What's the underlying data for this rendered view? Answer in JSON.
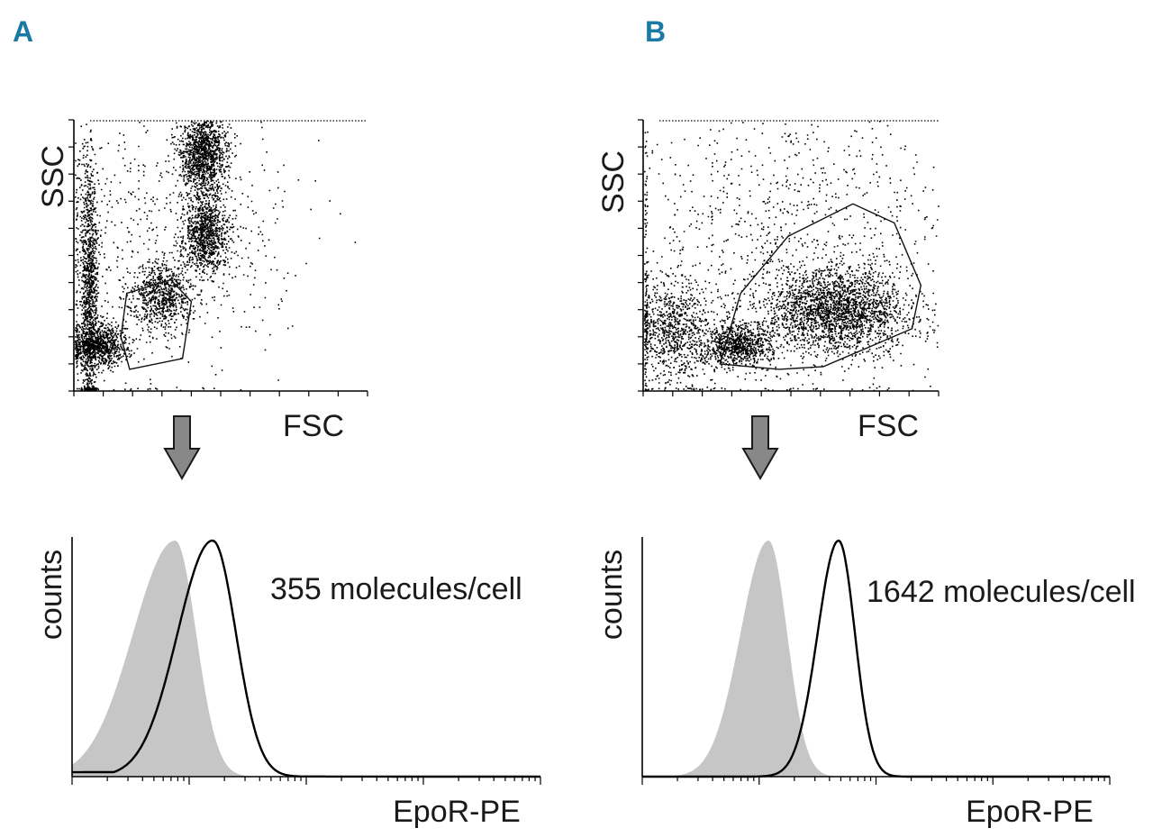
{
  "panels": [
    {
      "letter": "A",
      "scatter": {
        "xlabel": "FSC",
        "ylabel": "SSC"
      },
      "histogram": {
        "xlabel": "EpoR-PE",
        "ylabel": "counts",
        "annotation": "355 molecules/cell"
      }
    },
    {
      "letter": "B",
      "scatter": {
        "xlabel": "FSC",
        "ylabel": "SSC"
      },
      "histogram": {
        "xlabel": "EpoR-PE",
        "ylabel": "counts",
        "annotation": "1642 molecules/cell"
      }
    }
  ],
  "chart_data": [
    {
      "type": "scatter",
      "panel": "A",
      "xlabel": "FSC",
      "ylabel": "SSC",
      "xlim": [
        0,
        1
      ],
      "ylim": [
        0,
        1
      ],
      "clusters": [
        {
          "cx": 0.08,
          "cy": 0.17,
          "sx": 0.05,
          "sy": 0.04,
          "n": 900
        },
        {
          "cx": 0.44,
          "cy": 0.87,
          "sx": 0.04,
          "sy": 0.08,
          "n": 1300
        },
        {
          "cx": 0.45,
          "cy": 0.58,
          "sx": 0.04,
          "sy": 0.07,
          "n": 900
        },
        {
          "cx": 0.3,
          "cy": 0.35,
          "sx": 0.05,
          "sy": 0.06,
          "n": 700
        },
        {
          "cx": 0.05,
          "cy": 0.4,
          "sx": 0.015,
          "sy": 0.25,
          "n": 1100
        },
        {
          "cx": 0.32,
          "cy": 0.55,
          "sx": 0.22,
          "sy": 0.25,
          "n": 700
        }
      ],
      "gate": [
        [
          0.18,
          0.36
        ],
        [
          0.33,
          0.41
        ],
        [
          0.4,
          0.33
        ],
        [
          0.37,
          0.12
        ],
        [
          0.19,
          0.08
        ],
        [
          0.16,
          0.2
        ]
      ]
    },
    {
      "type": "scatter",
      "panel": "B",
      "xlabel": "FSC",
      "ylabel": "SSC",
      "xlim": [
        0,
        1
      ],
      "ylim": [
        0,
        1
      ],
      "clusters": [
        {
          "cx": 0.66,
          "cy": 0.3,
          "sx": 0.12,
          "sy": 0.08,
          "n": 2200
        },
        {
          "cx": 0.32,
          "cy": 0.17,
          "sx": 0.06,
          "sy": 0.04,
          "n": 800
        },
        {
          "cx": 0.1,
          "cy": 0.22,
          "sx": 0.07,
          "sy": 0.1,
          "n": 900
        },
        {
          "cx": 0.5,
          "cy": 0.55,
          "sx": 0.3,
          "sy": 0.28,
          "n": 1100
        }
      ],
      "gate": [
        [
          0.26,
          0.1
        ],
        [
          0.46,
          0.08
        ],
        [
          0.61,
          0.09
        ],
        [
          0.91,
          0.23
        ],
        [
          0.94,
          0.39
        ],
        [
          0.85,
          0.62
        ],
        [
          0.71,
          0.69
        ],
        [
          0.49,
          0.57
        ],
        [
          0.33,
          0.36
        ]
      ]
    },
    {
      "type": "area",
      "panel": "A",
      "xlabel": "EpoR-PE",
      "ylabel": "counts",
      "xlim": [
        0,
        1
      ],
      "ylim": [
        0,
        1
      ],
      "series": [
        {
          "role": "control",
          "peak": 0.22,
          "width_left": 0.09,
          "width_right": 0.045,
          "baseline": 0.03,
          "style": "filled-gray"
        },
        {
          "role": "stained",
          "peak": 0.3,
          "width_left": 0.075,
          "width_right": 0.05,
          "baseline": 0.02,
          "style": "black-outline"
        }
      ],
      "annotation": "355 molecules/cell"
    },
    {
      "type": "area",
      "panel": "B",
      "xlabel": "EpoR-PE",
      "ylabel": "counts",
      "xlim": [
        0,
        1
      ],
      "ylim": [
        0,
        1
      ],
      "series": [
        {
          "role": "control",
          "peak": 0.27,
          "width_left": 0.06,
          "width_right": 0.04,
          "baseline": 0.0,
          "style": "filled-gray"
        },
        {
          "role": "stained",
          "peak": 0.42,
          "width_left": 0.045,
          "width_right": 0.035,
          "baseline": 0.0,
          "style": "black-outline"
        }
      ],
      "annotation": "1642 molecules/cell"
    }
  ]
}
